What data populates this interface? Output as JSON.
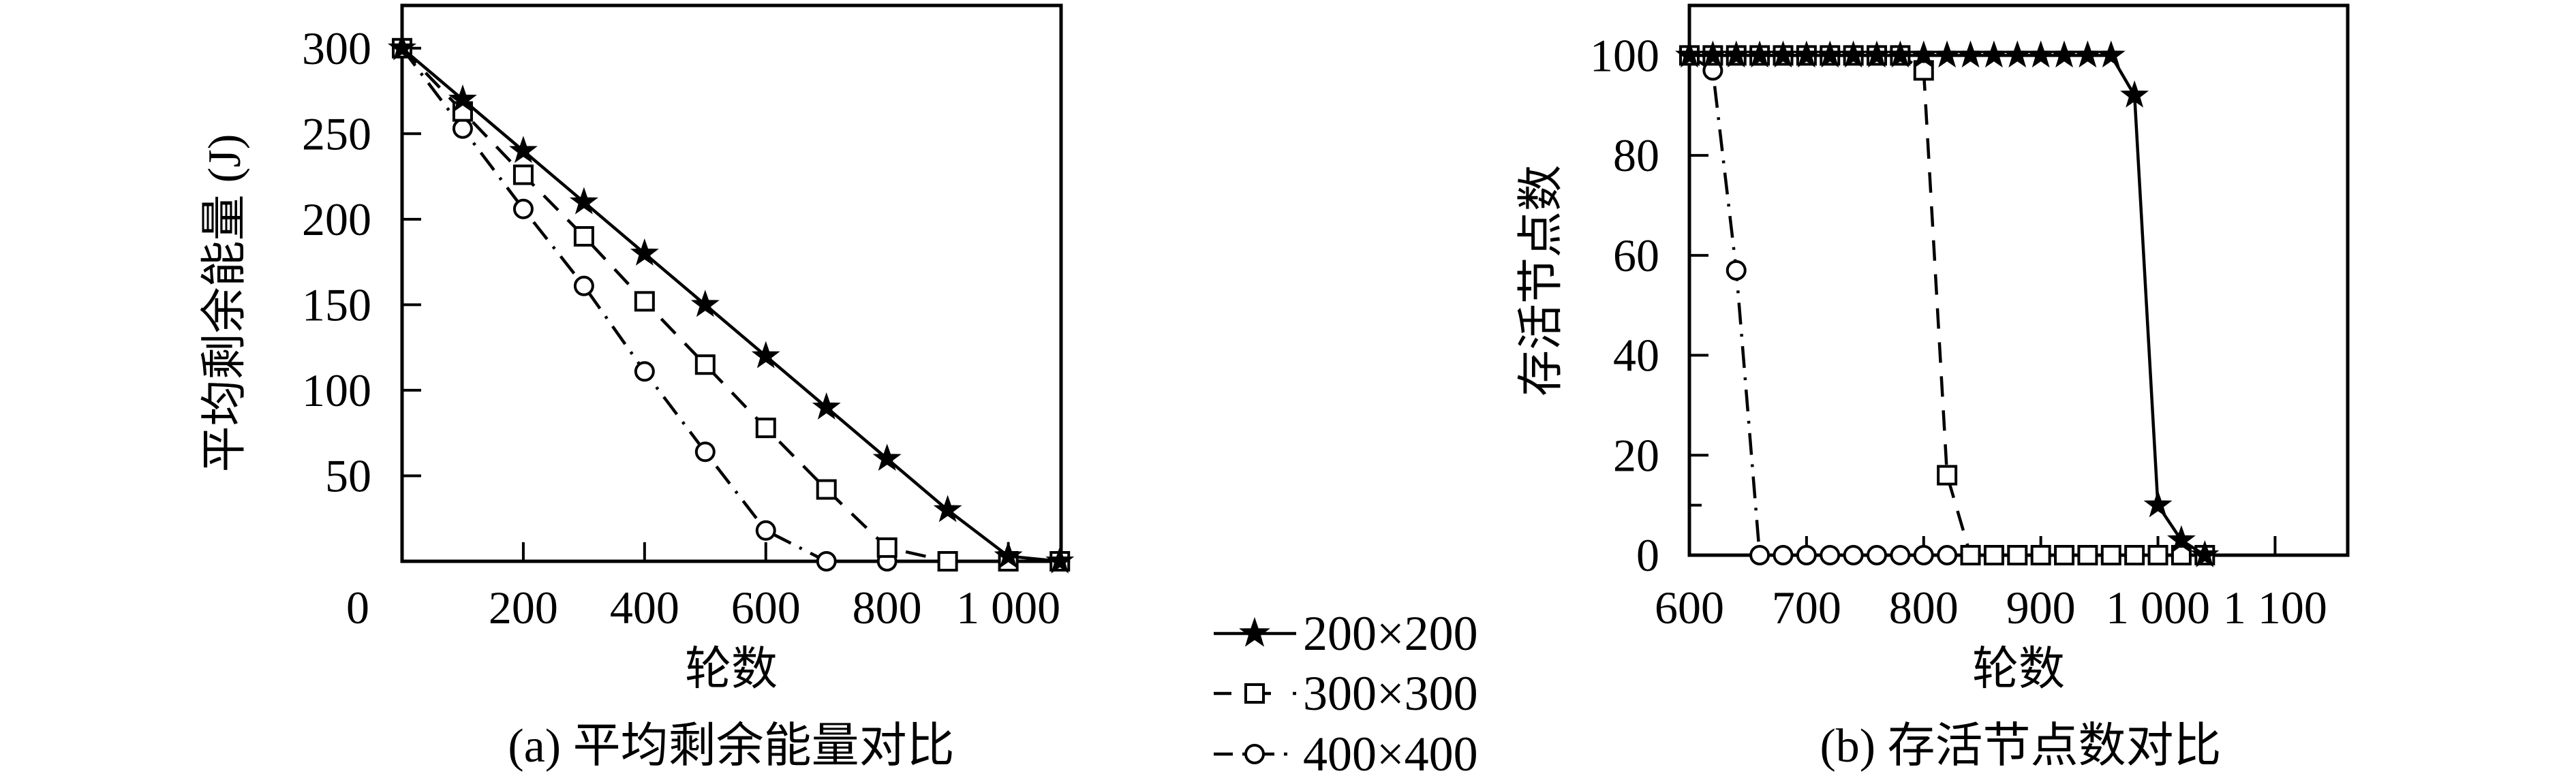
{
  "figure": {
    "background": "#ffffff",
    "ink": "#000000"
  },
  "legend": {
    "items": [
      {
        "label": "200×200",
        "marker": "star",
        "line": "solid"
      },
      {
        "label": "300×300",
        "marker": "square",
        "line": "dashed"
      },
      {
        "label": "400×400",
        "marker": "circle",
        "line": "dashdot"
      }
    ]
  },
  "chart_data": [
    {
      "id": "a",
      "type": "line",
      "title": "(a) 平均剩余能量对比",
      "xlabel": "轮数",
      "ylabel": "平均剩余能量 (J)",
      "xlim": [
        0,
        1087
      ],
      "ylim": [
        0,
        325
      ],
      "grid": false,
      "x_ticks": [
        {
          "v": 0,
          "label": "0"
        },
        {
          "v": 200,
          "label": "200"
        },
        {
          "v": 400,
          "label": "400"
        },
        {
          "v": 600,
          "label": "600"
        },
        {
          "v": 800,
          "label": "800"
        },
        {
          "v": 1000,
          "label": "1 000"
        }
      ],
      "y_ticks": [
        {
          "v": 50,
          "label": "50"
        },
        {
          "v": 100,
          "label": "100"
        },
        {
          "v": 150,
          "label": "150"
        },
        {
          "v": 200,
          "label": "200"
        },
        {
          "v": 250,
          "label": "250"
        },
        {
          "v": 300,
          "label": "300"
        }
      ],
      "series": [
        {
          "name": "200×200",
          "marker": "star",
          "line": "solid",
          "points": [
            [
              0,
              300
            ],
            [
              100,
              270
            ],
            [
              200,
              240
            ],
            [
              300,
              210
            ],
            [
              400,
              180
            ],
            [
              500,
              150
            ],
            [
              600,
              120
            ],
            [
              700,
              90
            ],
            [
              800,
              60
            ],
            [
              900,
              30
            ],
            [
              1000,
              3
            ],
            [
              1085,
              0
            ]
          ]
        },
        {
          "name": "300×300",
          "marker": "square",
          "line": "dashed",
          "points": [
            [
              0,
              300
            ],
            [
              100,
              263
            ],
            [
              200,
              226
            ],
            [
              300,
              190
            ],
            [
              400,
              152
            ],
            [
              500,
              115
            ],
            [
              600,
              78
            ],
            [
              700,
              42
            ],
            [
              800,
              8
            ],
            [
              900,
              0
            ],
            [
              1000,
              0
            ],
            [
              1085,
              0
            ]
          ]
        },
        {
          "name": "400×400",
          "marker": "circle",
          "line": "dashdot",
          "points": [
            [
              0,
              300
            ],
            [
              100,
              253
            ],
            [
              200,
              206
            ],
            [
              300,
              161
            ],
            [
              400,
              111
            ],
            [
              500,
              64
            ],
            [
              600,
              18
            ],
            [
              700,
              0
            ],
            [
              800,
              0
            ],
            [
              900,
              0
            ],
            [
              1000,
              0
            ],
            [
              1085,
              0
            ]
          ]
        }
      ]
    },
    {
      "id": "b",
      "type": "line",
      "title": "(b) 存活节点数对比",
      "xlabel": "轮数",
      "ylabel": "存活节点数",
      "xlim": [
        600,
        1162
      ],
      "ylim": [
        0,
        110
      ],
      "grid": false,
      "x_ticks": [
        {
          "v": 600,
          "label": "600"
        },
        {
          "v": 700,
          "label": "700"
        },
        {
          "v": 800,
          "label": "800"
        },
        {
          "v": 900,
          "label": "900"
        },
        {
          "v": 1000,
          "label": "1 000"
        },
        {
          "v": 1100,
          "label": "1 100"
        }
      ],
      "y_ticks": [
        {
          "v": 0,
          "label": "0"
        },
        {
          "v": 20,
          "label": "20"
        },
        {
          "v": 40,
          "label": "40"
        },
        {
          "v": 60,
          "label": "60"
        },
        {
          "v": 80,
          "label": "80"
        },
        {
          "v": 100,
          "label": "100"
        }
      ],
      "y_minor_ticks": [
        10
      ],
      "series": [
        {
          "name": "200×200",
          "marker": "star",
          "line": "solid",
          "points": [
            [
              600,
              100
            ],
            [
              620,
              100
            ],
            [
              640,
              100
            ],
            [
              660,
              100
            ],
            [
              680,
              100
            ],
            [
              700,
              100
            ],
            [
              720,
              100
            ],
            [
              740,
              100
            ],
            [
              760,
              100
            ],
            [
              780,
              100
            ],
            [
              800,
              100
            ],
            [
              820,
              100
            ],
            [
              840,
              100
            ],
            [
              860,
              100
            ],
            [
              880,
              100
            ],
            [
              900,
              100
            ],
            [
              920,
              100
            ],
            [
              940,
              100
            ],
            [
              960,
              100
            ],
            [
              980,
              92
            ],
            [
              1000,
              10
            ],
            [
              1020,
              3
            ],
            [
              1040,
              0
            ]
          ]
        },
        {
          "name": "300×300",
          "marker": "square",
          "line": "dashed",
          "points": [
            [
              600,
              100
            ],
            [
              620,
              100
            ],
            [
              640,
              100
            ],
            [
              660,
              100
            ],
            [
              680,
              100
            ],
            [
              700,
              100
            ],
            [
              720,
              100
            ],
            [
              740,
              100
            ],
            [
              760,
              100
            ],
            [
              780,
              100
            ],
            [
              800,
              97
            ],
            [
              820,
              16
            ],
            [
              840,
              0
            ],
            [
              860,
              0
            ],
            [
              880,
              0
            ],
            [
              900,
              0
            ],
            [
              920,
              0
            ],
            [
              940,
              0
            ],
            [
              960,
              0
            ],
            [
              980,
              0
            ],
            [
              1000,
              0
            ],
            [
              1020,
              0
            ],
            [
              1040,
              0
            ]
          ]
        },
        {
          "name": "400×400",
          "marker": "circle",
          "line": "dashdot",
          "points": [
            [
              600,
              100
            ],
            [
              620,
              97
            ],
            [
              640,
              57
            ],
            [
              660,
              0
            ],
            [
              680,
              0
            ],
            [
              700,
              0
            ],
            [
              720,
              0
            ],
            [
              740,
              0
            ],
            [
              760,
              0
            ],
            [
              780,
              0
            ],
            [
              800,
              0
            ],
            [
              820,
              0
            ],
            [
              840,
              0
            ],
            [
              860,
              0
            ],
            [
              880,
              0
            ],
            [
              900,
              0
            ],
            [
              920,
              0
            ],
            [
              940,
              0
            ],
            [
              960,
              0
            ],
            [
              980,
              0
            ],
            [
              1000,
              0
            ],
            [
              1020,
              0
            ],
            [
              1040,
              0
            ]
          ]
        }
      ]
    }
  ]
}
